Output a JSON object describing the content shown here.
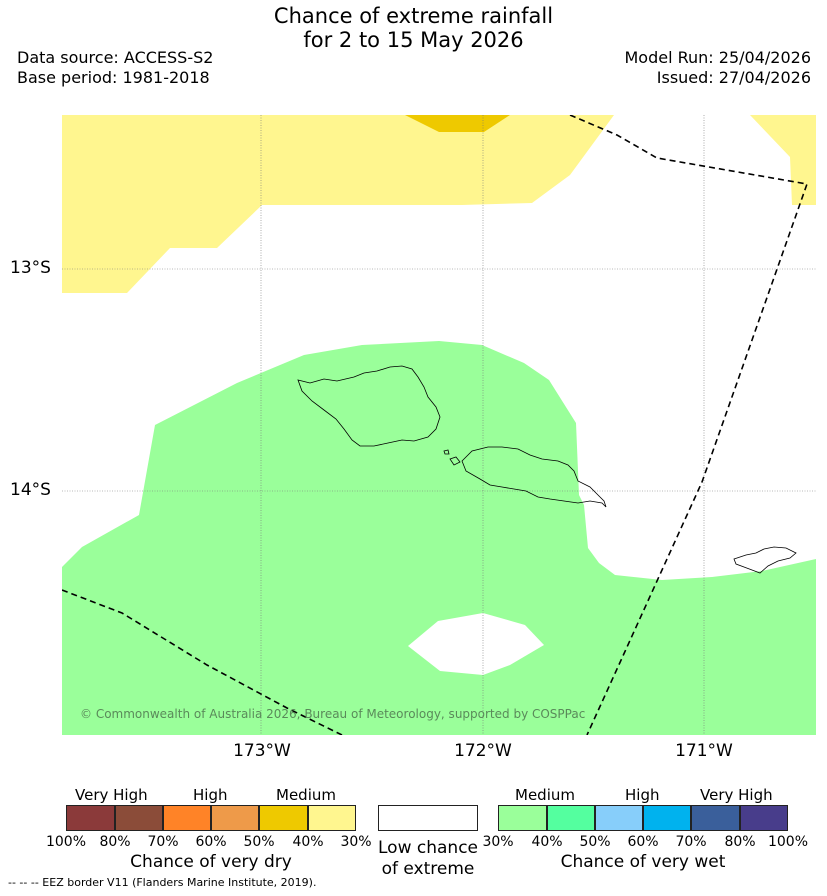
{
  "title": {
    "line1": "Chance of extreme rainfall",
    "line2": "for 2 to 15 May 2026"
  },
  "meta": {
    "data_source": "Data source: ACCESS-S2",
    "base_period": "Base period: 1981-2018",
    "model_run": "Model Run: 25/04/2026",
    "issued": "Issued: 27/04/2026"
  },
  "map": {
    "lat_labels": [
      "13°S",
      "14°S"
    ],
    "lon_labels": [
      "173°W",
      "172°W",
      "171°W"
    ],
    "copyright": "© Commonwealth of Australia 2026, Bureau of Meteorology, supported by COSPPac",
    "colors": {
      "medium_dry": "#fff68f",
      "medium_dry_strong": "#eec900",
      "medium_wet": "#9aff9a",
      "ocean": "#ffffff"
    }
  },
  "legend": {
    "dry": {
      "groups": [
        "Very High",
        "High",
        "Medium"
      ],
      "ticks": [
        "100%",
        "80%",
        "70%",
        "60%",
        "50%",
        "40%",
        "30%"
      ],
      "title": "Chance of very dry",
      "colors": [
        "#8b3a3a",
        "#8b4c39",
        "#ff8327",
        "#ee9a49",
        "#eec900",
        "#fff68f"
      ]
    },
    "low": {
      "title_line1": "Low chance",
      "title_line2": "of extreme"
    },
    "wet": {
      "groups": [
        "Medium",
        "High",
        "Very High"
      ],
      "ticks": [
        "30%",
        "40%",
        "50%",
        "60%",
        "70%",
        "80%",
        "100%"
      ],
      "title": "Chance of very wet",
      "colors": [
        "#9aff9a",
        "#54ff9f",
        "#87cefa",
        "#00b2ee",
        "#3a5f9b",
        "#483d8b"
      ]
    }
  },
  "footer": "--  --  -- EEZ border V11 (Flanders Marine Institute, 2019)."
}
